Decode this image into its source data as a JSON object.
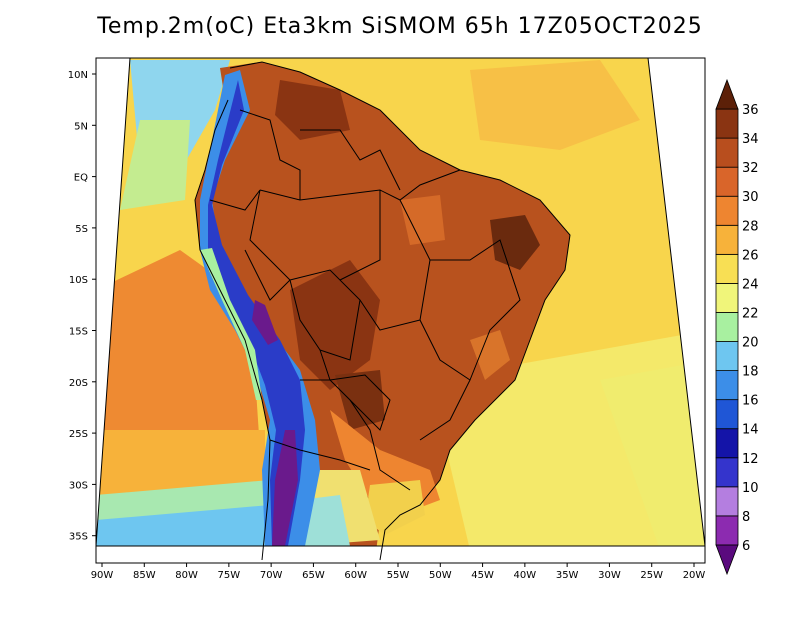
{
  "title": "Temp.2m(oC) Eta3km SiSMOM 65h 17Z05OCT2025",
  "lat_labels": [
    "10N",
    "5N",
    "EQ",
    "5S",
    "10S",
    "15S",
    "20S",
    "25S",
    "30S",
    "35S"
  ],
  "lon_labels": [
    "90W",
    "85W",
    "80W",
    "75W",
    "70W",
    "65W",
    "60W",
    "55W",
    "50W",
    "45W",
    "40W",
    "35W",
    "30W",
    "25W",
    "20W"
  ],
  "colorbar": {
    "labels": [
      "6",
      "8",
      "10",
      "12",
      "14",
      "16",
      "18",
      "20",
      "22",
      "24",
      "26",
      "28",
      "30",
      "32",
      "34",
      "36"
    ],
    "colors": [
      "#5a0a7e",
      "#8c2bb0",
      "#b47ee0",
      "#3434cc",
      "#1414a8",
      "#1f56d6",
      "#3c8ee8",
      "#6ec6f0",
      "#a8f0a0",
      "#f0f57a",
      "#f8df54",
      "#f7b23a",
      "#ee8530",
      "#d9652a",
      "#b84e1e",
      "#8a3412",
      "#5c2008"
    ]
  },
  "field_colors": {
    "ocean_north": "#f8d54c",
    "ocean_mid": "#f0ec6e",
    "ocean_pacific": "#ee8a32",
    "cold_coast": "#90d8f0",
    "land_hot": "#b8521e",
    "land_very_hot": "#8a3412",
    "andes_cold": "#2a3cc8",
    "andes_very_cold": "#6a1a8c",
    "south_cool": "#f2c640"
  }
}
